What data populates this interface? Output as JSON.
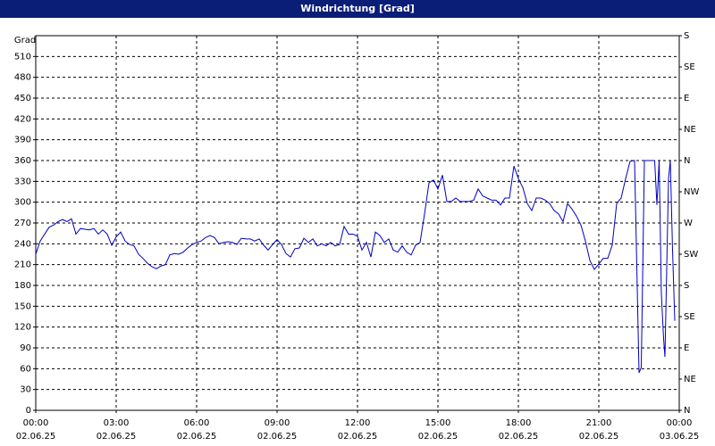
{
  "chart_data": {
    "type": "line",
    "title": "Windrichtung [Grad]",
    "y_label": "Grad",
    "x": [
      0,
      10,
      20,
      30,
      40,
      50,
      60,
      70,
      80,
      90,
      100,
      110,
      120,
      130,
      140,
      150,
      160,
      170,
      180,
      190,
      200,
      210,
      220,
      230,
      240,
      250,
      260,
      270,
      280,
      290,
      300,
      310,
      320,
      330,
      340,
      350,
      360,
      370,
      380,
      390,
      400,
      410,
      420,
      430,
      440,
      450,
      460,
      470,
      480,
      490,
      500,
      510,
      520,
      530,
      540,
      550,
      560,
      570,
      580,
      590,
      600,
      610,
      620,
      630,
      640,
      650,
      660,
      670,
      680,
      690,
      700,
      710,
      720,
      730,
      740,
      750,
      760,
      770,
      780,
      790,
      800,
      810,
      820,
      830,
      840,
      850,
      860,
      870,
      880,
      890,
      900,
      910,
      920,
      930,
      940,
      950,
      960,
      970,
      980,
      990,
      1000,
      1010,
      1020,
      1030,
      1040,
      1050,
      1060,
      1070,
      1080,
      1090,
      1100,
      1110,
      1120,
      1130,
      1140,
      1150,
      1160,
      1170,
      1180,
      1190,
      1200,
      1210,
      1220,
      1230,
      1240,
      1250,
      1260,
      1270,
      1280,
      1290,
      1300,
      1310,
      1320,
      1330,
      1340,
      1350,
      1355,
      1362,
      1370,
      1380,
      1385,
      1390,
      1395,
      1400,
      1405,
      1408,
      1412,
      1416,
      1420,
      1425,
      1430
    ],
    "values": [
      225,
      244,
      254,
      264,
      267,
      272,
      275,
      272,
      276,
      254,
      262,
      261,
      260,
      262,
      254,
      260,
      254,
      238,
      250,
      257,
      244,
      239,
      237,
      225,
      219,
      212,
      207,
      204,
      208,
      210,
      224,
      226,
      225,
      228,
      234,
      239,
      242,
      244,
      249,
      252,
      249,
      240,
      242,
      243,
      242,
      239,
      248,
      247,
      247,
      244,
      247,
      238,
      231,
      239,
      246,
      239,
      226,
      221,
      233,
      234,
      248,
      242,
      247,
      237,
      240,
      237,
      242,
      237,
      239,
      265,
      254,
      254,
      251,
      231,
      242,
      221,
      257,
      252,
      242,
      247,
      231,
      228,
      237,
      228,
      224,
      238,
      242,
      283,
      328,
      332,
      319,
      339,
      301,
      301,
      306,
      301,
      301,
      301,
      303,
      319,
      309,
      306,
      303,
      303,
      296,
      306,
      306,
      352,
      334,
      321,
      298,
      288,
      306,
      306,
      303,
      298,
      288,
      283,
      272,
      298,
      290,
      280,
      267,
      244,
      216,
      203,
      211,
      219,
      219,
      238,
      298,
      306,
      334,
      359,
      360,
      54,
      62,
      360,
      360,
      360,
      360,
      296,
      360,
      167,
      103,
      77,
      206,
      334,
      360,
      231,
      129
    ],
    "color": "#0000c0",
    "xlim": [
      0,
      1440
    ],
    "xticks": [
      {
        "value": 0,
        "label": "00:00"
      },
      {
        "value": 180,
        "label": "03:00"
      },
      {
        "value": 360,
        "label": "06:00"
      },
      {
        "value": 540,
        "label": "09:00"
      },
      {
        "value": 720,
        "label": "12:00"
      },
      {
        "value": 900,
        "label": "15:00"
      },
      {
        "value": 1080,
        "label": "18:00"
      },
      {
        "value": 1260,
        "label": "21:00"
      },
      {
        "value": 1440,
        "label": "00:00"
      }
    ],
    "xtick_dates": [
      "02.06.25",
      "02.06.25",
      "02.06.25",
      "02.06.25",
      "02.06.25",
      "02.06.25",
      "02.06.25",
      "02.06.25",
      "03.06.25"
    ],
    "ylim": [
      0,
      540
    ],
    "yticks": [
      0,
      30,
      60,
      90,
      120,
      150,
      180,
      210,
      240,
      270,
      300,
      330,
      360,
      390,
      420,
      450,
      480,
      510
    ],
    "y2lim": [
      0,
      540
    ],
    "y2ticks": [
      {
        "value": 540,
        "label": "S"
      },
      {
        "value": 495,
        "label": "SE"
      },
      {
        "value": 450,
        "label": "E"
      },
      {
        "value": 405,
        "label": "NE"
      },
      {
        "value": 360,
        "label": "N"
      },
      {
        "value": 315,
        "label": "NW"
      },
      {
        "value": 270,
        "label": "W"
      },
      {
        "value": 225,
        "label": "SW"
      },
      {
        "value": 180,
        "label": "S"
      },
      {
        "value": 135,
        "label": "SE"
      },
      {
        "value": 90,
        "label": "E"
      },
      {
        "value": 45,
        "label": "NE"
      },
      {
        "value": 0,
        "label": "N"
      }
    ],
    "grid": true
  }
}
